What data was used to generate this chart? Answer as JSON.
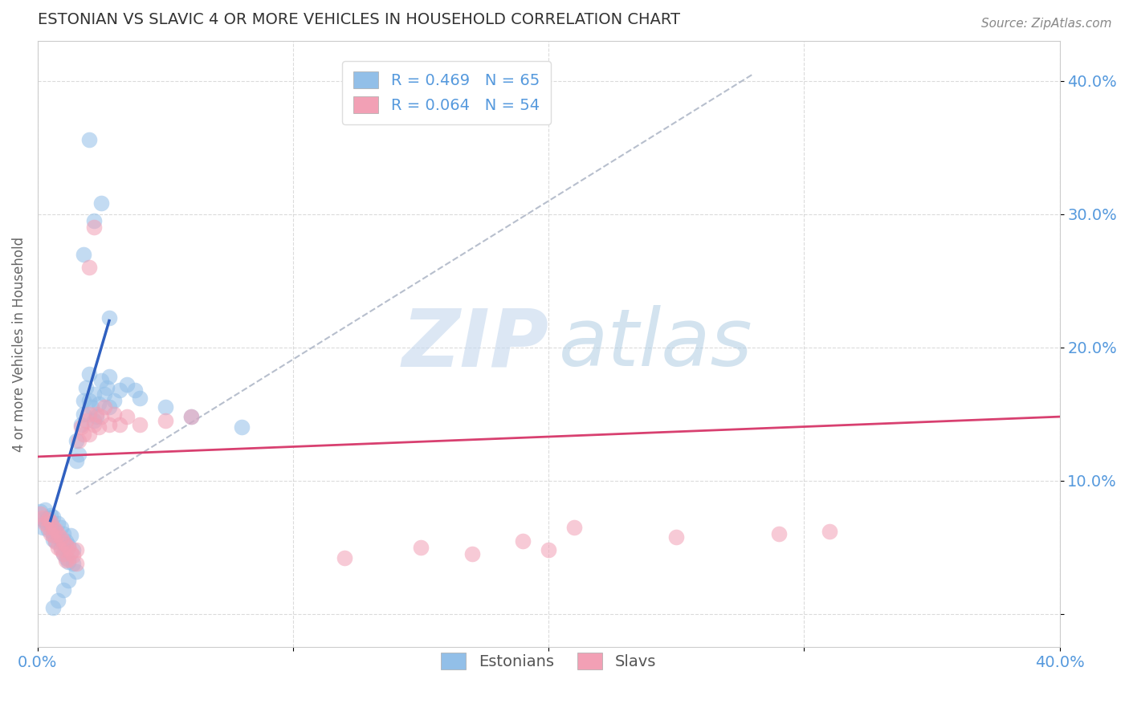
{
  "title": "ESTONIAN VS SLAVIC 4 OR MORE VEHICLES IN HOUSEHOLD CORRELATION CHART",
  "source_text": "Source: ZipAtlas.com",
  "ylabel": "4 or more Vehicles in Household",
  "xlim": [
    0.0,
    0.4
  ],
  "ylim": [
    -0.025,
    0.43
  ],
  "xticks": [
    0.0,
    0.1,
    0.2,
    0.3,
    0.4
  ],
  "yticks": [
    0.0,
    0.1,
    0.2,
    0.3,
    0.4
  ],
  "xticklabels": [
    "0.0%",
    "",
    "",
    "",
    "40.0%"
  ],
  "yticklabels": [
    "",
    "10.0%",
    "20.0%",
    "30.0%",
    "40.0%"
  ],
  "legend_R_blue": "R = 0.469",
  "legend_N_blue": "N = 65",
  "legend_R_pink": "R = 0.064",
  "legend_N_pink": "N = 54",
  "blue_color": "#92BFE8",
  "pink_color": "#F2A0B5",
  "blue_line_color": "#3060C0",
  "pink_line_color": "#D84070",
  "axis_color": "#5599DD",
  "grid_color": "#CCCCCC",
  "blue_scatter": [
    [
      0.001,
      0.077
    ],
    [
      0.002,
      0.071
    ],
    [
      0.002,
      0.065
    ],
    [
      0.003,
      0.078
    ],
    [
      0.003,
      0.069
    ],
    [
      0.004,
      0.072
    ],
    [
      0.004,
      0.063
    ],
    [
      0.005,
      0.074
    ],
    [
      0.005,
      0.068
    ],
    [
      0.006,
      0.06
    ],
    [
      0.006,
      0.073
    ],
    [
      0.006,
      0.056
    ],
    [
      0.007,
      0.062
    ],
    [
      0.007,
      0.055
    ],
    [
      0.008,
      0.068
    ],
    [
      0.008,
      0.058
    ],
    [
      0.009,
      0.065
    ],
    [
      0.009,
      0.05
    ],
    [
      0.01,
      0.06
    ],
    [
      0.01,
      0.053
    ],
    [
      0.01,
      0.045
    ],
    [
      0.011,
      0.055
    ],
    [
      0.011,
      0.042
    ],
    [
      0.012,
      0.052
    ],
    [
      0.012,
      0.039
    ],
    [
      0.013,
      0.059
    ],
    [
      0.014,
      0.048
    ],
    [
      0.014,
      0.038
    ],
    [
      0.015,
      0.115
    ],
    [
      0.015,
      0.13
    ],
    [
      0.016,
      0.12
    ],
    [
      0.017,
      0.142
    ],
    [
      0.018,
      0.15
    ],
    [
      0.018,
      0.16
    ],
    [
      0.019,
      0.17
    ],
    [
      0.02,
      0.18
    ],
    [
      0.02,
      0.16
    ],
    [
      0.021,
      0.155
    ],
    [
      0.022,
      0.165
    ],
    [
      0.022,
      0.145
    ],
    [
      0.023,
      0.148
    ],
    [
      0.024,
      0.158
    ],
    [
      0.025,
      0.175
    ],
    [
      0.026,
      0.165
    ],
    [
      0.027,
      0.17
    ],
    [
      0.028,
      0.178
    ],
    [
      0.028,
      0.155
    ],
    [
      0.03,
      0.16
    ],
    [
      0.032,
      0.168
    ],
    [
      0.035,
      0.172
    ],
    [
      0.038,
      0.168
    ],
    [
      0.04,
      0.162
    ],
    [
      0.05,
      0.155
    ],
    [
      0.06,
      0.148
    ],
    [
      0.08,
      0.14
    ],
    [
      0.02,
      0.356
    ],
    [
      0.022,
      0.295
    ],
    [
      0.018,
      0.27
    ],
    [
      0.025,
      0.308
    ],
    [
      0.028,
      0.222
    ],
    [
      0.015,
      0.032
    ],
    [
      0.012,
      0.025
    ],
    [
      0.01,
      0.018
    ],
    [
      0.008,
      0.01
    ],
    [
      0.006,
      0.005
    ]
  ],
  "pink_scatter": [
    [
      0.001,
      0.075
    ],
    [
      0.002,
      0.072
    ],
    [
      0.003,
      0.068
    ],
    [
      0.004,
      0.071
    ],
    [
      0.004,
      0.065
    ],
    [
      0.005,
      0.069
    ],
    [
      0.005,
      0.06
    ],
    [
      0.006,
      0.065
    ],
    [
      0.006,
      0.059
    ],
    [
      0.007,
      0.063
    ],
    [
      0.007,
      0.054
    ],
    [
      0.008,
      0.06
    ],
    [
      0.008,
      0.05
    ],
    [
      0.009,
      0.057
    ],
    [
      0.009,
      0.048
    ],
    [
      0.01,
      0.054
    ],
    [
      0.01,
      0.045
    ],
    [
      0.011,
      0.052
    ],
    [
      0.011,
      0.04
    ],
    [
      0.012,
      0.05
    ],
    [
      0.012,
      0.041
    ],
    [
      0.013,
      0.046
    ],
    [
      0.014,
      0.044
    ],
    [
      0.015,
      0.048
    ],
    [
      0.015,
      0.038
    ],
    [
      0.016,
      0.13
    ],
    [
      0.017,
      0.14
    ],
    [
      0.018,
      0.135
    ],
    [
      0.019,
      0.145
    ],
    [
      0.02,
      0.15
    ],
    [
      0.02,
      0.135
    ],
    [
      0.022,
      0.142
    ],
    [
      0.023,
      0.15
    ],
    [
      0.024,
      0.14
    ],
    [
      0.025,
      0.148
    ],
    [
      0.026,
      0.155
    ],
    [
      0.028,
      0.142
    ],
    [
      0.03,
      0.15
    ],
    [
      0.032,
      0.142
    ],
    [
      0.035,
      0.148
    ],
    [
      0.04,
      0.142
    ],
    [
      0.05,
      0.145
    ],
    [
      0.06,
      0.148
    ],
    [
      0.022,
      0.29
    ],
    [
      0.02,
      0.26
    ],
    [
      0.19,
      0.055
    ],
    [
      0.21,
      0.065
    ],
    [
      0.25,
      0.058
    ],
    [
      0.29,
      0.06
    ],
    [
      0.31,
      0.062
    ],
    [
      0.15,
      0.05
    ],
    [
      0.17,
      0.045
    ],
    [
      0.12,
      0.042
    ],
    [
      0.2,
      0.048
    ]
  ],
  "blue_line": [
    [
      0.005,
      0.07
    ],
    [
      0.028,
      0.22
    ]
  ],
  "pink_line": [
    [
      0.0,
      0.118
    ],
    [
      0.4,
      0.148
    ]
  ],
  "gray_dash_line": [
    [
      0.015,
      0.09
    ],
    [
      0.28,
      0.405
    ]
  ]
}
